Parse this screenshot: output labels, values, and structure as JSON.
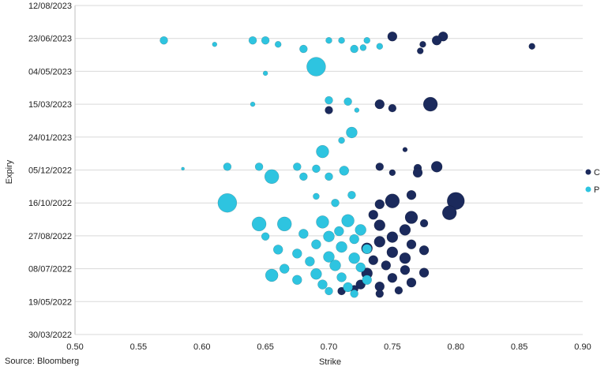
{
  "source_note": "Source: Bloomberg",
  "chart_data": {
    "type": "scatter",
    "title": "",
    "xlabel": "Strike",
    "ylabel": "Expiry",
    "xlim": [
      0.5,
      0.9
    ],
    "x_ticks": [
      "0.50",
      "0.55",
      "0.60",
      "0.65",
      "0.70",
      "0.75",
      "0.80",
      "0.85",
      "0.90"
    ],
    "y_ticks": [
      "30/03/2022",
      "19/05/2022",
      "08/07/2022",
      "27/08/2022",
      "16/10/2022",
      "05/12/2022",
      "24/01/2023",
      "15/03/2023",
      "04/05/2023",
      "23/06/2023",
      "12/08/2023"
    ],
    "ylim": [
      "30/03/2022",
      "12/08/2023"
    ],
    "grid": "horizontal",
    "legend_position": "right",
    "colors": {
      "C": "#1b2a5c",
      "P": "#2ec4e0"
    },
    "series": [
      {
        "name": "C",
        "points": [
          {
            "x": 0.75,
            "y": "2023-06-26",
            "s": 6
          },
          {
            "x": 0.79,
            "y": "2023-06-26",
            "s": 6
          },
          {
            "x": 0.785,
            "y": "2023-06-20",
            "s": 6
          },
          {
            "x": 0.774,
            "y": "2023-06-14",
            "s": 4
          },
          {
            "x": 0.86,
            "y": "2023-06-11",
            "s": 4
          },
          {
            "x": 0.772,
            "y": "2023-06-04",
            "s": 4
          },
          {
            "x": 0.78,
            "y": "2023-03-15",
            "s": 9
          },
          {
            "x": 0.74,
            "y": "2023-03-15",
            "s": 6
          },
          {
            "x": 0.75,
            "y": "2023-03-09",
            "s": 5
          },
          {
            "x": 0.7,
            "y": "2023-03-06",
            "s": 5
          },
          {
            "x": 0.76,
            "y": "2023-01-05",
            "s": 3
          },
          {
            "x": 0.77,
            "y": "2022-12-08",
            "s": 5
          },
          {
            "x": 0.785,
            "y": "2022-12-10",
            "s": 7
          },
          {
            "x": 0.77,
            "y": "2022-12-01",
            "s": 6
          },
          {
            "x": 0.74,
            "y": "2022-12-10",
            "s": 5
          },
          {
            "x": 0.75,
            "y": "2022-12-01",
            "s": 4
          },
          {
            "x": 0.8,
            "y": "2022-10-19",
            "s": 11
          },
          {
            "x": 0.795,
            "y": "2022-10-01",
            "s": 9
          },
          {
            "x": 0.75,
            "y": "2022-10-19",
            "s": 9
          },
          {
            "x": 0.765,
            "y": "2022-10-28",
            "s": 6
          },
          {
            "x": 0.74,
            "y": "2022-10-14",
            "s": 6
          },
          {
            "x": 0.765,
            "y": "2022-09-24",
            "s": 8
          },
          {
            "x": 0.735,
            "y": "2022-09-28",
            "s": 6
          },
          {
            "x": 0.775,
            "y": "2022-09-15",
            "s": 5
          },
          {
            "x": 0.74,
            "y": "2022-09-12",
            "s": 7
          },
          {
            "x": 0.76,
            "y": "2022-09-05",
            "s": 7
          },
          {
            "x": 0.75,
            "y": "2022-08-25",
            "s": 7
          },
          {
            "x": 0.74,
            "y": "2022-08-18",
            "s": 7
          },
          {
            "x": 0.765,
            "y": "2022-08-14",
            "s": 6
          },
          {
            "x": 0.73,
            "y": "2022-08-08",
            "s": 7
          },
          {
            "x": 0.75,
            "y": "2022-08-02",
            "s": 7
          },
          {
            "x": 0.775,
            "y": "2022-08-05",
            "s": 6
          },
          {
            "x": 0.76,
            "y": "2022-07-24",
            "s": 7
          },
          {
            "x": 0.735,
            "y": "2022-07-21",
            "s": 6
          },
          {
            "x": 0.745,
            "y": "2022-07-13",
            "s": 6
          },
          {
            "x": 0.76,
            "y": "2022-07-06",
            "s": 6
          },
          {
            "x": 0.775,
            "y": "2022-07-02",
            "s": 6
          },
          {
            "x": 0.73,
            "y": "2022-07-01",
            "s": 7
          },
          {
            "x": 0.75,
            "y": "2022-06-24",
            "s": 6
          },
          {
            "x": 0.765,
            "y": "2022-06-17",
            "s": 6
          },
          {
            "x": 0.74,
            "y": "2022-06-11",
            "s": 6
          },
          {
            "x": 0.725,
            "y": "2022-06-14",
            "s": 6
          },
          {
            "x": 0.755,
            "y": "2022-06-05",
            "s": 5
          },
          {
            "x": 0.72,
            "y": "2022-06-07",
            "s": 5
          },
          {
            "x": 0.74,
            "y": "2022-05-31",
            "s": 5
          },
          {
            "x": 0.71,
            "y": "2022-06-04",
            "s": 5
          }
        ]
      },
      {
        "name": "P",
        "points": [
          {
            "x": 0.57,
            "y": "2023-06-20",
            "s": 5
          },
          {
            "x": 0.65,
            "y": "2023-06-20",
            "s": 5
          },
          {
            "x": 0.64,
            "y": "2023-06-20",
            "s": 5
          },
          {
            "x": 0.7,
            "y": "2023-06-20",
            "s": 4
          },
          {
            "x": 0.71,
            "y": "2023-06-20",
            "s": 4
          },
          {
            "x": 0.73,
            "y": "2023-06-20",
            "s": 4
          },
          {
            "x": 0.61,
            "y": "2023-06-14",
            "s": 3
          },
          {
            "x": 0.66,
            "y": "2023-06-14",
            "s": 4
          },
          {
            "x": 0.74,
            "y": "2023-06-11",
            "s": 4
          },
          {
            "x": 0.68,
            "y": "2023-06-07",
            "s": 5
          },
          {
            "x": 0.72,
            "y": "2023-06-07",
            "s": 5
          },
          {
            "x": 0.727,
            "y": "2023-06-09",
            "s": 4
          },
          {
            "x": 0.69,
            "y": "2023-05-11",
            "s": 12
          },
          {
            "x": 0.65,
            "y": "2023-05-01",
            "s": 3
          },
          {
            "x": 0.7,
            "y": "2023-03-21",
            "s": 5
          },
          {
            "x": 0.715,
            "y": "2023-03-19",
            "s": 5
          },
          {
            "x": 0.64,
            "y": "2023-03-15",
            "s": 3
          },
          {
            "x": 0.722,
            "y": "2023-03-06",
            "s": 3
          },
          {
            "x": 0.718,
            "y": "2023-01-31",
            "s": 7
          },
          {
            "x": 0.71,
            "y": "2023-01-19",
            "s": 4
          },
          {
            "x": 0.695,
            "y": "2023-01-02",
            "s": 8
          },
          {
            "x": 0.62,
            "y": "2022-12-10",
            "s": 5
          },
          {
            "x": 0.645,
            "y": "2022-12-10",
            "s": 5
          },
          {
            "x": 0.675,
            "y": "2022-12-10",
            "s": 5
          },
          {
            "x": 0.69,
            "y": "2022-12-07",
            "s": 5
          },
          {
            "x": 0.712,
            "y": "2022-12-04",
            "s": 6
          },
          {
            "x": 0.655,
            "y": "2022-11-25",
            "s": 9
          },
          {
            "x": 0.68,
            "y": "2022-11-25",
            "s": 5
          },
          {
            "x": 0.7,
            "y": "2022-11-25",
            "s": 5
          },
          {
            "x": 0.585,
            "y": "2022-12-07",
            "s": 2
          },
          {
            "x": 0.62,
            "y": "2022-10-16",
            "s": 12
          },
          {
            "x": 0.69,
            "y": "2022-10-26",
            "s": 4
          },
          {
            "x": 0.718,
            "y": "2022-10-28",
            "s": 5
          },
          {
            "x": 0.705,
            "y": "2022-10-16",
            "s": 5
          },
          {
            "x": 0.645,
            "y": "2022-09-14",
            "s": 9
          },
          {
            "x": 0.665,
            "y": "2022-09-14",
            "s": 9
          },
          {
            "x": 0.695,
            "y": "2022-09-17",
            "s": 8
          },
          {
            "x": 0.715,
            "y": "2022-09-19",
            "s": 8
          },
          {
            "x": 0.725,
            "y": "2022-09-05",
            "s": 7
          },
          {
            "x": 0.708,
            "y": "2022-09-03",
            "s": 6
          },
          {
            "x": 0.68,
            "y": "2022-08-30",
            "s": 6
          },
          {
            "x": 0.7,
            "y": "2022-08-26",
            "s": 7
          },
          {
            "x": 0.72,
            "y": "2022-08-22",
            "s": 6
          },
          {
            "x": 0.65,
            "y": "2022-08-26",
            "s": 5
          },
          {
            "x": 0.69,
            "y": "2022-08-14",
            "s": 6
          },
          {
            "x": 0.71,
            "y": "2022-08-10",
            "s": 7
          },
          {
            "x": 0.73,
            "y": "2022-08-07",
            "s": 6
          },
          {
            "x": 0.66,
            "y": "2022-08-06",
            "s": 6
          },
          {
            "x": 0.675,
            "y": "2022-07-31",
            "s": 6
          },
          {
            "x": 0.7,
            "y": "2022-07-26",
            "s": 7
          },
          {
            "x": 0.72,
            "y": "2022-07-24",
            "s": 7
          },
          {
            "x": 0.685,
            "y": "2022-07-19",
            "s": 6
          },
          {
            "x": 0.705,
            "y": "2022-07-13",
            "s": 7
          },
          {
            "x": 0.725,
            "y": "2022-07-10",
            "s": 6
          },
          {
            "x": 0.665,
            "y": "2022-07-08",
            "s": 6
          },
          {
            "x": 0.655,
            "y": "2022-06-28",
            "s": 8
          },
          {
            "x": 0.69,
            "y": "2022-06-30",
            "s": 7
          },
          {
            "x": 0.71,
            "y": "2022-06-25",
            "s": 6
          },
          {
            "x": 0.73,
            "y": "2022-06-21",
            "s": 6
          },
          {
            "x": 0.675,
            "y": "2022-06-21",
            "s": 6
          },
          {
            "x": 0.695,
            "y": "2022-06-14",
            "s": 6
          },
          {
            "x": 0.715,
            "y": "2022-06-10",
            "s": 6
          },
          {
            "x": 0.7,
            "y": "2022-06-04",
            "s": 5
          },
          {
            "x": 0.72,
            "y": "2022-05-31",
            "s": 5
          }
        ]
      }
    ],
    "legend": [
      {
        "name": "C",
        "color": "#1b2a5c"
      },
      {
        "name": "P",
        "color": "#2ec4e0"
      }
    ]
  }
}
